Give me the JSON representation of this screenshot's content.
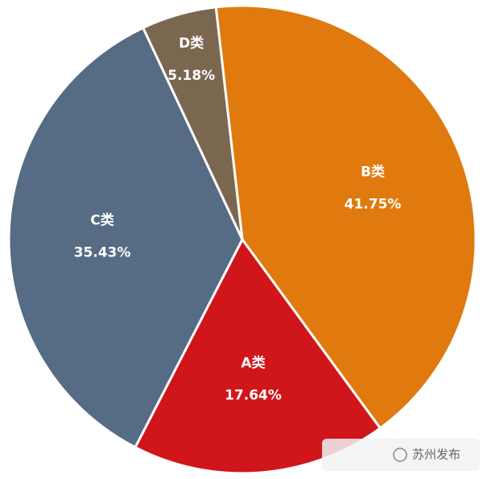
{
  "chart_data": {
    "type": "pie",
    "categories": [
      "B类",
      "A类",
      "C类",
      "D类"
    ],
    "values": [
      41.75,
      17.64,
      35.43,
      5.18
    ],
    "value_labels": [
      "41.75%",
      "17.64%",
      "35.43%",
      "5.18%"
    ],
    "colors": [
      "#e07a0e",
      "#d0161b",
      "#566b84",
      "#7b6650"
    ]
  },
  "watermark": "苏州发布"
}
